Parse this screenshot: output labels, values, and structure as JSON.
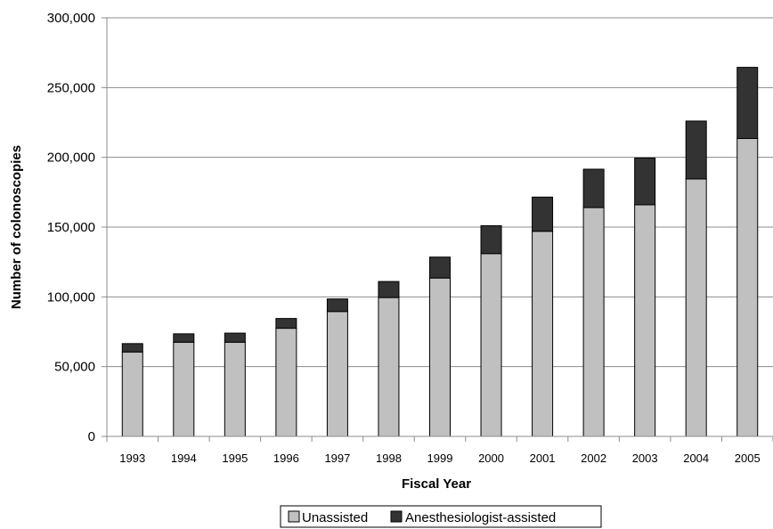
{
  "chart_data": {
    "type": "bar",
    "stacked": true,
    "categories": [
      "1993",
      "1994",
      "1995",
      "1996",
      "1997",
      "1998",
      "1999",
      "2000",
      "2001",
      "2002",
      "2003",
      "2004",
      "2005"
    ],
    "series": [
      {
        "name": "Unassisted",
        "color": "#c0c0c0",
        "values": [
          60500,
          67500,
          67500,
          77500,
          89500,
          99500,
          113500,
          131000,
          147000,
          164000,
          166000,
          184500,
          213500
        ]
      },
      {
        "name": "Anesthesiologist-assisted",
        "color": "#333333",
        "values": [
          6000,
          6000,
          6500,
          7000,
          9000,
          11500,
          15000,
          20000,
          24500,
          27500,
          33500,
          41500,
          51000
        ]
      }
    ],
    "xlabel": "Fiscal Year",
    "ylabel": "Number of colonoscopies",
    "ylim": [
      0,
      300000
    ],
    "yticks": [
      0,
      50000,
      100000,
      150000,
      200000,
      250000,
      300000
    ],
    "ytick_labels": [
      "0",
      "50,000",
      "100,000",
      "150,000",
      "200,000",
      "250,000",
      "300,000"
    ],
    "grid": true,
    "legend_position": "bottom"
  }
}
